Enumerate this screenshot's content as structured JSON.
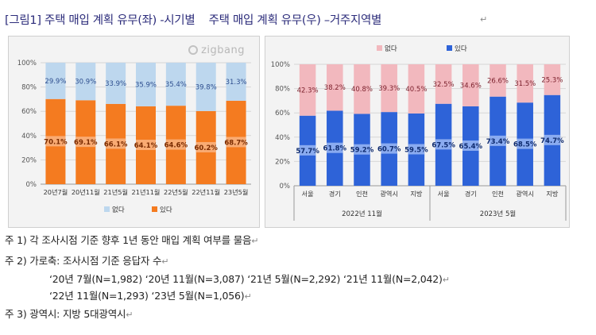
{
  "document": {
    "title": "[그림1] 주택 매입 계획 유무(좌) -시기별    주택 매입 계획 유무(우) –거주지역별",
    "paragraph_mark": "↵",
    "watermark": "zigbang"
  },
  "colors": {
    "none": "#bdd7ee",
    "has_left": "#f47b20",
    "has_right": "#2e63d8",
    "none_right": "#f2b8be"
  },
  "chart_data": [
    {
      "type": "bar",
      "stacked": true,
      "categories": [
        "20년7월",
        "20년11월",
        "21년5월",
        "21년11월",
        "22년5월",
        "22년11월",
        "23년5월"
      ],
      "series": [
        {
          "name": "있다",
          "values": [
            70.1,
            69.1,
            66.1,
            64.1,
            64.6,
            60.2,
            68.7
          ],
          "labels": [
            "70.1%",
            "69.1%",
            "66.1%",
            "64.1%",
            "64.6%",
            "60.2%",
            "68.7%"
          ]
        },
        {
          "name": "없다",
          "values": [
            29.9,
            30.9,
            33.9,
            35.9,
            35.4,
            39.8,
            31.3
          ],
          "labels": [
            "29.9%",
            "30.9%",
            "33.9%",
            "35.9%",
            "35.4%",
            "39.8%",
            "31.3%"
          ]
        }
      ],
      "yticks": [
        "0%",
        "20%",
        "40%",
        "60%",
        "80%",
        "100%"
      ],
      "ylim": [
        0,
        100
      ],
      "legend": [
        "없다",
        "있다"
      ],
      "legend_position": "bottom"
    },
    {
      "type": "bar",
      "stacked": true,
      "categories": [
        "서울",
        "경기",
        "인천",
        "광역시",
        "지방",
        "서울",
        "경기",
        "인천",
        "광역시",
        "지방"
      ],
      "groups": [
        "2022년 11월",
        "2023년 5월"
      ],
      "series": [
        {
          "name": "있다",
          "values": [
            57.7,
            61.8,
            59.2,
            60.7,
            59.5,
            67.5,
            65.4,
            73.4,
            68.5,
            74.7
          ],
          "labels": [
            "57.7%",
            "61.8%",
            "59.2%",
            "60.7%",
            "59.5%",
            "67.5%",
            "65.4%",
            "73.4%",
            "68.5%",
            "74.7%"
          ]
        },
        {
          "name": "없다",
          "values": [
            42.3,
            38.2,
            40.8,
            39.3,
            40.5,
            32.5,
            34.6,
            26.6,
            31.5,
            25.3
          ],
          "labels": [
            "42.3%",
            "38.2%",
            "40.8%",
            "39.3%",
            "40.5%",
            "32.5%",
            "34.6%",
            "26.6%",
            "31.5%",
            "25.3%"
          ]
        }
      ],
      "yticks": [
        "0%",
        "20%",
        "40%",
        "60%",
        "80%",
        "100%"
      ],
      "ylim": [
        0,
        100
      ],
      "legend": [
        "없다",
        "있다"
      ],
      "legend_position": "top"
    }
  ],
  "notes": [
    "주 1) 각 조사시점 기준 향후 1년 동안 매입 계획 여부를 물음",
    "주 2) 가로축: 조사시점 기준 응답자 수",
    "‘20년 7월(N=1,982) ‘20년 11월(N=3,087) ‘21년 5월(N=2,292) ‘21년 11월(N=2,042)",
    "‘22년 11월(N=1,293) ‘23년 5월(N=1,056)",
    "주 3) 광역시: 지방 5대광역시"
  ]
}
